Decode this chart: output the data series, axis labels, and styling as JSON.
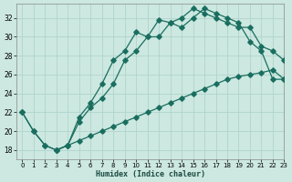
{
  "xlabel": "Humidex (Indice chaleur)",
  "background_color": "#cce8e0",
  "grid_color": "#b0d4cc",
  "line_color": "#1a6e60",
  "xlim": [
    -0.5,
    23
  ],
  "ylim": [
    17,
    33.5
  ],
  "xticks": [
    0,
    1,
    2,
    3,
    4,
    5,
    6,
    7,
    8,
    9,
    10,
    11,
    12,
    13,
    14,
    15,
    16,
    17,
    18,
    19,
    20,
    21,
    22,
    23
  ],
  "yticks": [
    18,
    20,
    22,
    24,
    26,
    28,
    30,
    32
  ],
  "line1_x": [
    0,
    1,
    2,
    3,
    4,
    5,
    6,
    7,
    8,
    9,
    10,
    11,
    12,
    13,
    14,
    15,
    16,
    17,
    18,
    19,
    20,
    21,
    22,
    23
  ],
  "line1_y": [
    22.0,
    20.0,
    18.5,
    18.0,
    18.5,
    21.5,
    23.0,
    25.0,
    27.5,
    28.5,
    30.5,
    30.0,
    31.8,
    31.5,
    32.0,
    33.0,
    32.5,
    32.0,
    31.5,
    31.0,
    31.0,
    29.0,
    28.5,
    27.5
  ],
  "line2_x": [
    3,
    4,
    5,
    6,
    7,
    8,
    9,
    10,
    11,
    12,
    13,
    14,
    15,
    16,
    17,
    18,
    19,
    20,
    21,
    22,
    23
  ],
  "line2_y": [
    18.0,
    18.5,
    21.0,
    22.5,
    23.5,
    25.0,
    27.5,
    28.5,
    30.0,
    30.0,
    31.5,
    31.0,
    32.0,
    33.0,
    32.5,
    32.0,
    31.5,
    29.5,
    28.5,
    25.5,
    25.5
  ],
  "line3_x": [
    0,
    1,
    2,
    3,
    4,
    5,
    6,
    7,
    8,
    9,
    10,
    11,
    12,
    13,
    14,
    15,
    16,
    17,
    18,
    19,
    20,
    21,
    22,
    23
  ],
  "line3_y": [
    22.0,
    20.0,
    18.5,
    18.0,
    18.5,
    19.0,
    19.5,
    20.0,
    20.5,
    21.0,
    21.5,
    22.0,
    22.5,
    23.0,
    23.5,
    24.0,
    24.5,
    25.0,
    25.5,
    25.8,
    26.0,
    26.2,
    26.5,
    25.5
  ]
}
